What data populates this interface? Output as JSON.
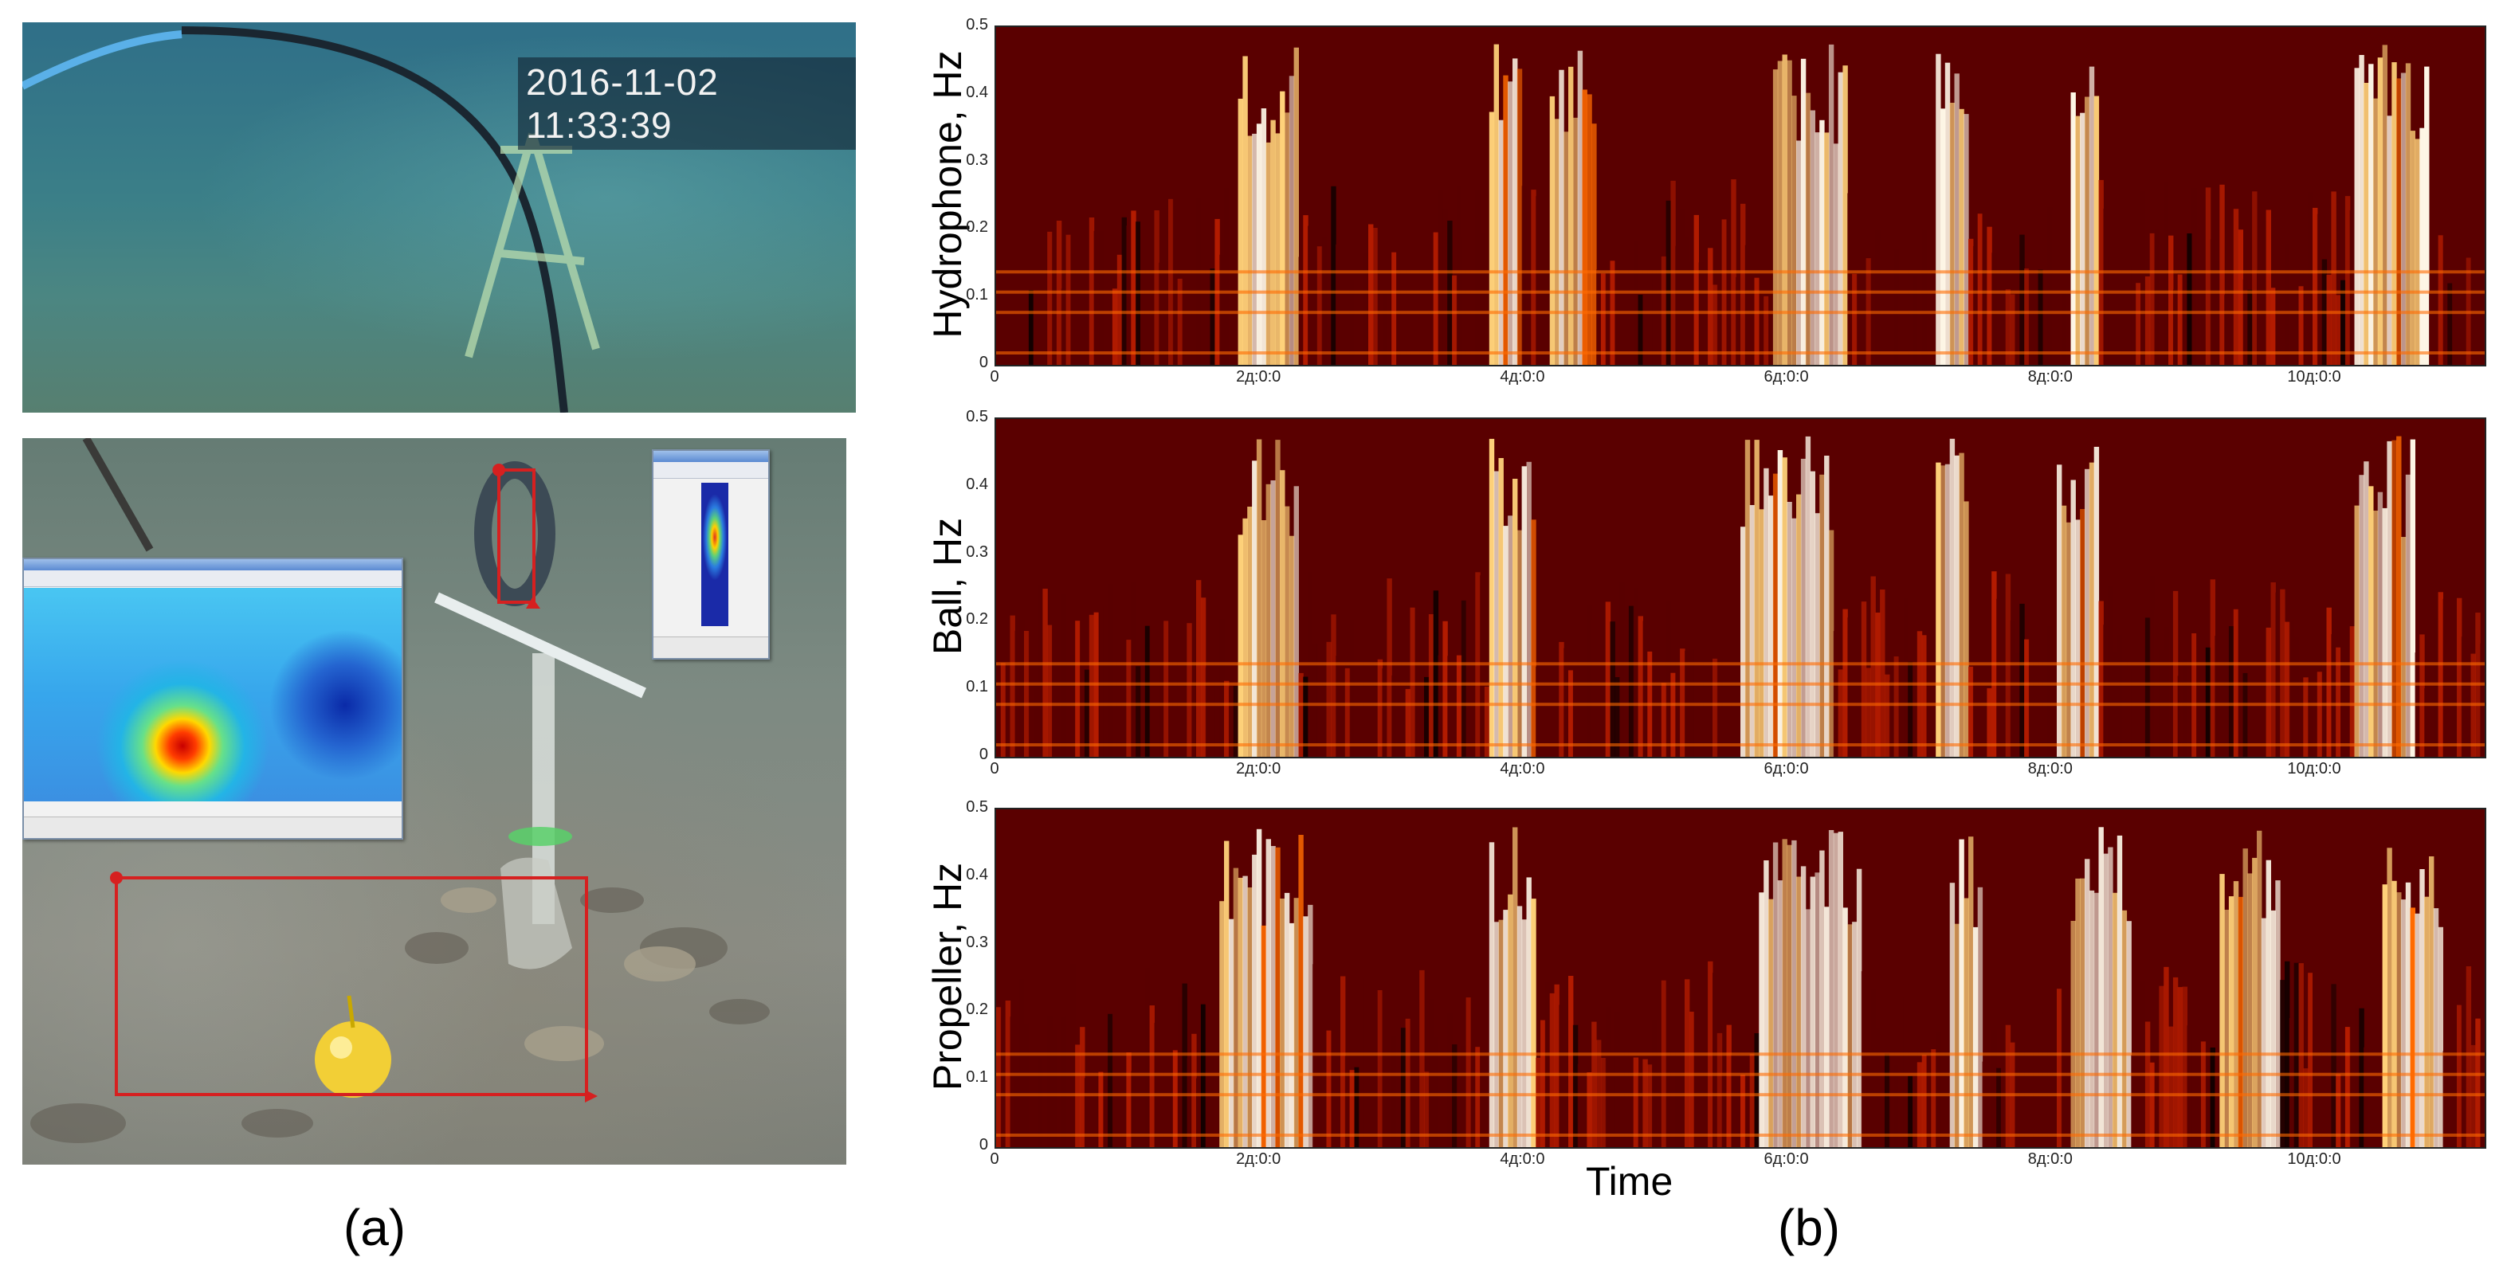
{
  "panel_a": {
    "timestamp": "2016-11-02 11:33:39",
    "caption": "(a)"
  },
  "panel_b": {
    "caption": "(b)",
    "x_axis_label": "Time"
  },
  "chart_data": [
    {
      "type": "heatmap",
      "ylabel": "Hydrophone,  Hz",
      "yticks": [
        "0",
        "0.1",
        "0.2",
        "0.3",
        "0.4",
        "0.5"
      ],
      "xticks": [
        "0",
        "2д:0:0",
        "4д:0:0",
        "6д:0:0",
        "8д:0:0",
        "10д:0:0"
      ],
      "ylim": [
        0,
        0.5
      ],
      "colormap": [
        "#120000",
        "#5a0000",
        "#b51c00",
        "#ff6a00",
        "#ffd27a",
        "#fff8e8"
      ]
    },
    {
      "type": "heatmap",
      "ylabel": "Ball, Hz",
      "yticks": [
        "0",
        "0.1",
        "0.2",
        "0.3",
        "0.4",
        "0.5"
      ],
      "xticks": [
        "0",
        "2д:0:0",
        "4д:0:0",
        "6д:0:0",
        "8д:0:0",
        "10д:0:0"
      ],
      "ylim": [
        0,
        0.5
      ],
      "colormap": [
        "#120000",
        "#5a0000",
        "#b51c00",
        "#ff6a00",
        "#ffd27a",
        "#fff8e8"
      ]
    },
    {
      "type": "heatmap",
      "ylabel": "Propeller, Hz",
      "yticks": [
        "0",
        "0.1",
        "0.2",
        "0.3",
        "0.4",
        "0.5"
      ],
      "xticks": [
        "0",
        "2д:0:0",
        "4д:0:0",
        "6д:0:0",
        "8д:0:0",
        "10д:0:0"
      ],
      "ylim": [
        0,
        0.5
      ],
      "colormap": [
        "#120000",
        "#5a0000",
        "#b51c00",
        "#ff6a00",
        "#ffd27a",
        "#fff8e8"
      ]
    }
  ]
}
